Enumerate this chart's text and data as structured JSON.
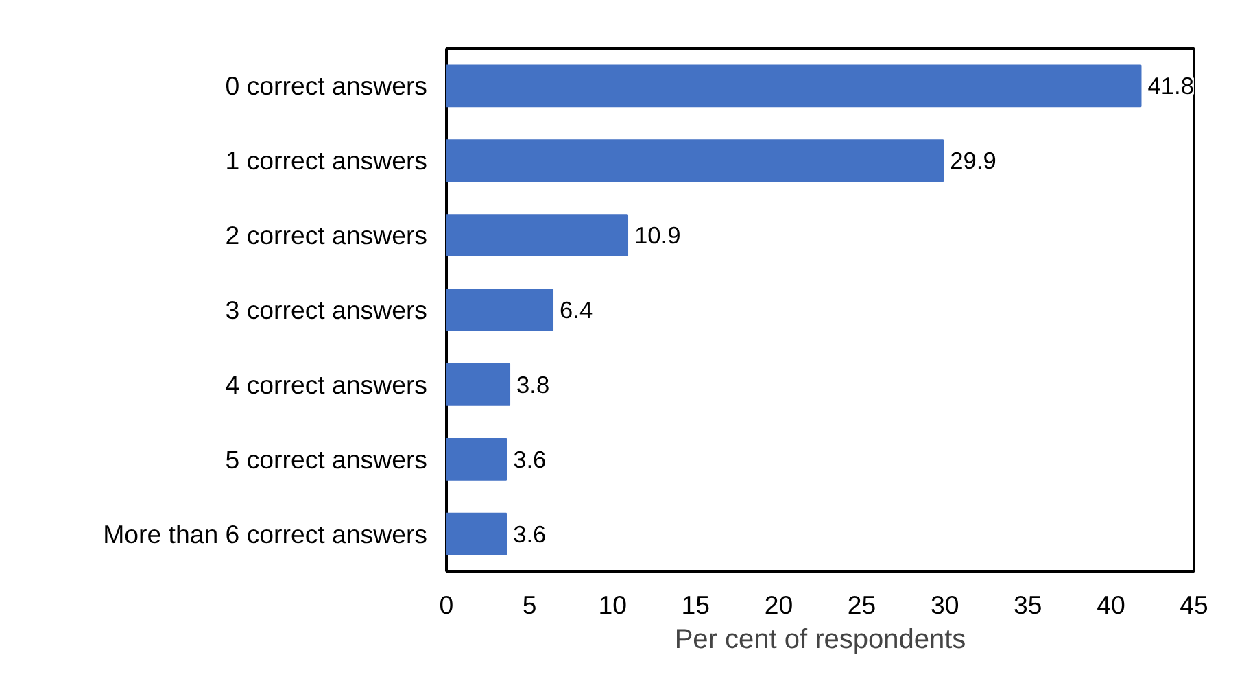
{
  "chart_data": {
    "type": "bar",
    "orientation": "horizontal",
    "xlabel": "Per cent of respondents",
    "categories": [
      "0 correct answers",
      "1 correct answers",
      "2 correct answers",
      "3 correct answers",
      "4 correct answers",
      "5 correct answers",
      "More than 6 correct answers"
    ],
    "values": [
      41.8,
      29.9,
      10.9,
      6.4,
      3.8,
      3.6,
      3.6
    ],
    "color": "#4472c4",
    "xlim": [
      0,
      45
    ],
    "xticks": [
      0,
      5,
      10,
      15,
      20,
      25,
      30,
      35,
      40,
      45
    ],
    "grid": false,
    "data_labels": true
  }
}
